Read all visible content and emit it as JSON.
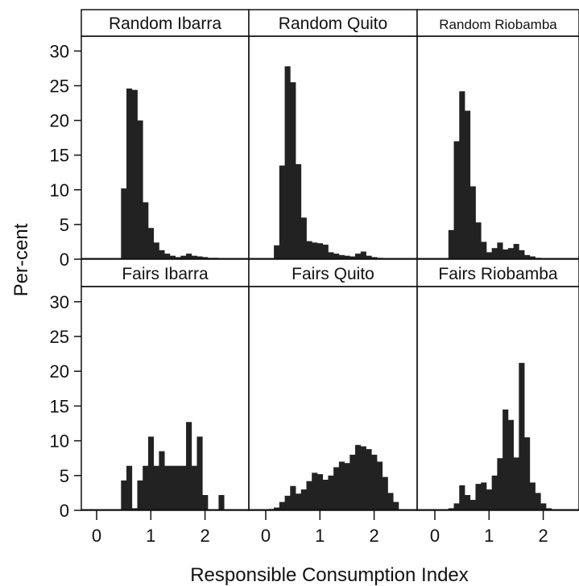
{
  "chart_data": {
    "type": "bar",
    "ylabel": "Per-cent",
    "xlabel": "Responsible Consumption Index",
    "ylim": [
      0,
      32
    ],
    "xlim": [
      -0.3,
      2.7
    ],
    "y_ticks": [
      "0",
      "5",
      "10",
      "15",
      "20",
      "25",
      "30"
    ],
    "x_ticks": [
      "0",
      "1",
      "2"
    ],
    "bar_color": "#222222",
    "bin_width": 0.1,
    "panels": [
      {
        "title": "Random Ibarra",
        "bins": [
          {
            "x": 0.5,
            "y": 10.2
          },
          {
            "x": 0.6,
            "y": 24.6
          },
          {
            "x": 0.7,
            "y": 24.4
          },
          {
            "x": 0.8,
            "y": 20.0
          },
          {
            "x": 0.9,
            "y": 8.2
          },
          {
            "x": 1.0,
            "y": 4.5
          },
          {
            "x": 1.1,
            "y": 2.4
          },
          {
            "x": 1.2,
            "y": 1.3
          },
          {
            "x": 1.3,
            "y": 0.8
          },
          {
            "x": 1.4,
            "y": 0.5
          },
          {
            "x": 1.5,
            "y": 0.3
          },
          {
            "x": 1.6,
            "y": 0.5
          },
          {
            "x": 1.7,
            "y": 0.8
          },
          {
            "x": 1.8,
            "y": 0.5
          },
          {
            "x": 1.9,
            "y": 0.4
          },
          {
            "x": 2.0,
            "y": 0.3
          },
          {
            "x": 2.1,
            "y": 0.2
          },
          {
            "x": 2.2,
            "y": 0.2
          },
          {
            "x": 2.3,
            "y": 0.1
          },
          {
            "x": 2.4,
            "y": 0.1
          },
          {
            "x": 2.5,
            "y": 0.1
          }
        ]
      },
      {
        "title": "Random Quito",
        "bins": [
          {
            "x": 0.2,
            "y": 2.0
          },
          {
            "x": 0.3,
            "y": 13.5
          },
          {
            "x": 0.4,
            "y": 27.8
          },
          {
            "x": 0.5,
            "y": 25.5
          },
          {
            "x": 0.6,
            "y": 13.7
          },
          {
            "x": 0.7,
            "y": 6.0
          },
          {
            "x": 0.8,
            "y": 2.6
          },
          {
            "x": 0.9,
            "y": 2.4
          },
          {
            "x": 1.0,
            "y": 2.3
          },
          {
            "x": 1.1,
            "y": 2.1
          },
          {
            "x": 1.2,
            "y": 1.0
          },
          {
            "x": 1.3,
            "y": 0.8
          },
          {
            "x": 1.4,
            "y": 0.6
          },
          {
            "x": 1.5,
            "y": 0.5
          },
          {
            "x": 1.6,
            "y": 0.4
          },
          {
            "x": 1.7,
            "y": 0.8
          },
          {
            "x": 1.8,
            "y": 1.1
          },
          {
            "x": 1.9,
            "y": 0.5
          },
          {
            "x": 2.0,
            "y": 0.3
          },
          {
            "x": 2.1,
            "y": 0.2
          },
          {
            "x": 2.2,
            "y": 0.1
          }
        ]
      },
      {
        "title": "Random Riobamba",
        "bins": [
          {
            "x": 0.3,
            "y": 4.2
          },
          {
            "x": 0.4,
            "y": 17.0
          },
          {
            "x": 0.5,
            "y": 24.2
          },
          {
            "x": 0.6,
            "y": 21.4
          },
          {
            "x": 0.7,
            "y": 10.5
          },
          {
            "x": 0.8,
            "y": 5.3
          },
          {
            "x": 0.9,
            "y": 2.5
          },
          {
            "x": 1.0,
            "y": 1.0
          },
          {
            "x": 1.1,
            "y": 1.6
          },
          {
            "x": 1.2,
            "y": 2.4
          },
          {
            "x": 1.3,
            "y": 1.4
          },
          {
            "x": 1.4,
            "y": 1.6
          },
          {
            "x": 1.5,
            "y": 2.2
          },
          {
            "x": 1.6,
            "y": 1.3
          },
          {
            "x": 1.7,
            "y": 0.6
          },
          {
            "x": 1.8,
            "y": 0.4
          },
          {
            "x": 1.9,
            "y": 0.2
          }
        ]
      },
      {
        "title": "Fairs Ibarra",
        "bins": [
          {
            "x": 0.5,
            "y": 4.3
          },
          {
            "x": 0.6,
            "y": 6.4
          },
          {
            "x": 0.7,
            "y": 0.3
          },
          {
            "x": 0.8,
            "y": 4.3
          },
          {
            "x": 0.9,
            "y": 6.4
          },
          {
            "x": 1.0,
            "y": 10.6
          },
          {
            "x": 1.1,
            "y": 6.4
          },
          {
            "x": 1.2,
            "y": 8.5
          },
          {
            "x": 1.3,
            "y": 6.4
          },
          {
            "x": 1.4,
            "y": 6.4
          },
          {
            "x": 1.5,
            "y": 6.4
          },
          {
            "x": 1.6,
            "y": 6.4
          },
          {
            "x": 1.7,
            "y": 12.7
          },
          {
            "x": 1.8,
            "y": 6.4
          },
          {
            "x": 1.9,
            "y": 10.6
          },
          {
            "x": 2.0,
            "y": 2.2
          },
          {
            "x": 2.3,
            "y": 2.2
          }
        ]
      },
      {
        "title": "Fairs Quito",
        "bins": [
          {
            "x": 0.1,
            "y": 0.2
          },
          {
            "x": 0.2,
            "y": 0.4
          },
          {
            "x": 0.3,
            "y": 1.2
          },
          {
            "x": 0.4,
            "y": 2.1
          },
          {
            "x": 0.5,
            "y": 3.5
          },
          {
            "x": 0.6,
            "y": 2.4
          },
          {
            "x": 0.7,
            "y": 3.0
          },
          {
            "x": 0.8,
            "y": 4.2
          },
          {
            "x": 0.9,
            "y": 5.4
          },
          {
            "x": 1.0,
            "y": 5.2
          },
          {
            "x": 1.1,
            "y": 4.4
          },
          {
            "x": 1.2,
            "y": 5.0
          },
          {
            "x": 1.3,
            "y": 6.2
          },
          {
            "x": 1.4,
            "y": 7.0
          },
          {
            "x": 1.5,
            "y": 6.8
          },
          {
            "x": 1.6,
            "y": 8.0
          },
          {
            "x": 1.7,
            "y": 9.4
          },
          {
            "x": 1.8,
            "y": 9.2
          },
          {
            "x": 1.9,
            "y": 8.8
          },
          {
            "x": 2.0,
            "y": 8.0
          },
          {
            "x": 2.1,
            "y": 7.0
          },
          {
            "x": 2.2,
            "y": 4.8
          },
          {
            "x": 2.3,
            "y": 2.5
          },
          {
            "x": 2.4,
            "y": 1.2
          }
        ]
      },
      {
        "title": "Fairs Riobamba",
        "bins": [
          {
            "x": 0.3,
            "y": 0.3
          },
          {
            "x": 0.4,
            "y": 1.0
          },
          {
            "x": 0.5,
            "y": 3.6
          },
          {
            "x": 0.6,
            "y": 2.2
          },
          {
            "x": 0.7,
            "y": 1.5
          },
          {
            "x": 0.8,
            "y": 3.8
          },
          {
            "x": 0.9,
            "y": 4.0
          },
          {
            "x": 1.0,
            "y": 3.0
          },
          {
            "x": 1.1,
            "y": 5.0
          },
          {
            "x": 1.2,
            "y": 7.5
          },
          {
            "x": 1.3,
            "y": 14.5
          },
          {
            "x": 1.4,
            "y": 13.0
          },
          {
            "x": 1.5,
            "y": 7.6
          },
          {
            "x": 1.6,
            "y": 21.2
          },
          {
            "x": 1.7,
            "y": 10.5
          },
          {
            "x": 1.8,
            "y": 4.0
          },
          {
            "x": 1.9,
            "y": 2.5
          },
          {
            "x": 2.0,
            "y": 1.0
          },
          {
            "x": 2.1,
            "y": 0.3
          }
        ]
      }
    ]
  }
}
